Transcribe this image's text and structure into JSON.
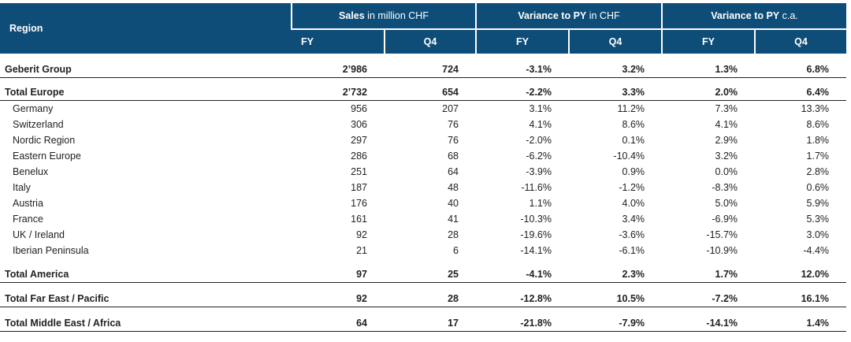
{
  "table": {
    "header": {
      "region": "Region",
      "groups": [
        {
          "bold": "Sales",
          "normal": " in million CHF"
        },
        {
          "bold": "Variance to PY",
          "normal": " in CHF"
        },
        {
          "bold": "Variance to PY",
          "normal": " c.a."
        }
      ],
      "subcols": [
        "FY",
        "Q4",
        "FY",
        "Q4",
        "FY",
        "Q4"
      ]
    },
    "rows": [
      {
        "name": "Geberit Group",
        "vals": [
          "2’986",
          "724",
          "-3.1%",
          "3.2%",
          "1.3%",
          "6.8%"
        ]
      },
      {
        "name": "Total Europe",
        "vals": [
          "2’732",
          "654",
          "-2.2%",
          "3.3%",
          "2.0%",
          "6.4%"
        ]
      },
      {
        "name": "Germany",
        "vals": [
          "956",
          "207",
          "3.1%",
          "11.2%",
          "7.3%",
          "13.3%"
        ]
      },
      {
        "name": "Switzerland",
        "vals": [
          "306",
          "76",
          "4.1%",
          "8.6%",
          "4.1%",
          "8.6%"
        ]
      },
      {
        "name": "Nordic Region",
        "vals": [
          "297",
          "76",
          "-2.0%",
          "0.1%",
          "2.9%",
          "1.8%"
        ]
      },
      {
        "name": "Eastern Europe",
        "vals": [
          "286",
          "68",
          "-6.2%",
          "-10.4%",
          "3.2%",
          "1.7%"
        ]
      },
      {
        "name": "Benelux",
        "vals": [
          "251",
          "64",
          "-3.9%",
          "0.9%",
          "0.0%",
          "2.8%"
        ]
      },
      {
        "name": "Italy",
        "vals": [
          "187",
          "48",
          "-11.6%",
          "-1.2%",
          "-8.3%",
          "0.6%"
        ]
      },
      {
        "name": "Austria",
        "vals": [
          "176",
          "40",
          "1.1%",
          "4.0%",
          "5.0%",
          "5.9%"
        ]
      },
      {
        "name": "France",
        "vals": [
          "161",
          "41",
          "-10.3%",
          "3.4%",
          "-6.9%",
          "5.3%"
        ]
      },
      {
        "name": "UK / Ireland",
        "vals": [
          "92",
          "28",
          "-19.6%",
          "-3.6%",
          "-15.7%",
          "3.0%"
        ]
      },
      {
        "name": "Iberian Peninsula",
        "vals": [
          "21",
          "6",
          "-14.1%",
          "-6.1%",
          "-10.9%",
          "-4.4%"
        ]
      },
      {
        "name": "Total America",
        "vals": [
          "97",
          "25",
          "-4.1%",
          "2.3%",
          "1.7%",
          "12.0%"
        ]
      },
      {
        "name": "Total Far East / Pacific",
        "vals": [
          "92",
          "28",
          "-12.8%",
          "10.5%",
          "-7.2%",
          "16.1%"
        ]
      },
      {
        "name": "Total Middle East / Africa",
        "vals": [
          "64",
          "17",
          "-21.8%",
          "-7.9%",
          "-14.1%",
          "1.4%"
        ]
      }
    ]
  }
}
